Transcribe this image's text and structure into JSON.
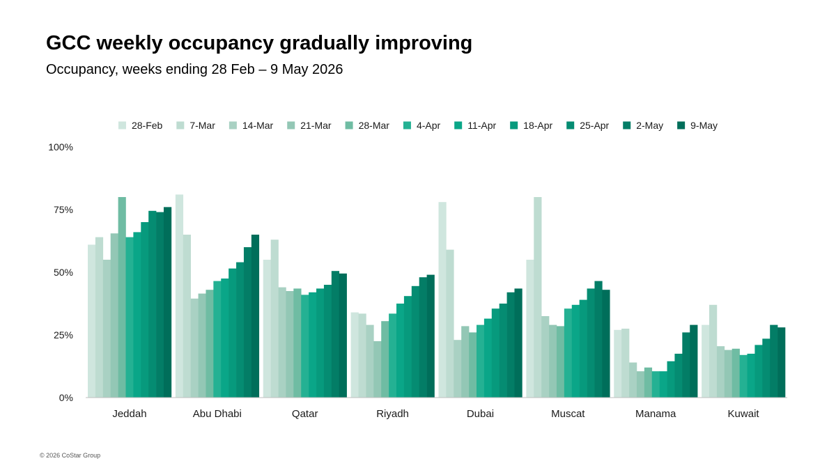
{
  "title": "GCC weekly occupancy gradually improving",
  "subtitle": "Occupancy, weeks ending 28 Feb – 9 May 2026",
  "footer": "© 2026 CoStar Group",
  "chart_data": {
    "type": "bar",
    "categories": [
      "Jeddah",
      "Abu Dhabi",
      "Qatar",
      "Riyadh",
      "Dubai",
      "Muscat",
      "Manama",
      "Kuwait"
    ],
    "ylim": [
      0,
      100
    ],
    "yticks": [
      "0%",
      "25%",
      "50%",
      "75%",
      "100%"
    ],
    "grid": false,
    "legend_position": "top",
    "series": [
      {
        "name": "28-Feb",
        "color": "#cfe6de",
        "values": [
          61,
          81,
          55,
          34,
          78,
          55,
          27,
          29
        ]
      },
      {
        "name": "7-Mar",
        "color": "#bedcd1",
        "values": [
          64,
          65,
          63,
          33.5,
          59,
          80,
          27.5,
          37
        ]
      },
      {
        "name": "14-Mar",
        "color": "#a9d1c3",
        "values": [
          55,
          39.5,
          44,
          29,
          23,
          32.5,
          14,
          20.5
        ]
      },
      {
        "name": "21-Mar",
        "color": "#93c7b5",
        "values": [
          65.5,
          41.5,
          42.5,
          22.5,
          28.5,
          29,
          10.5,
          19
        ]
      },
      {
        "name": "28-Mar",
        "color": "#6fbca3",
        "values": [
          80,
          43,
          43.5,
          30.5,
          26,
          28.5,
          12,
          19.5
        ]
      },
      {
        "name": "4-Apr",
        "color": "#24b193",
        "values": [
          64,
          46.5,
          41,
          33.5,
          29,
          35.5,
          10.5,
          17
        ]
      },
      {
        "name": "11-Apr",
        "color": "#0aa688",
        "values": [
          66,
          47.5,
          42,
          37.5,
          31.5,
          37,
          10.5,
          17.5
        ]
      },
      {
        "name": "18-Apr",
        "color": "#079a7d",
        "values": [
          70,
          51.5,
          43.5,
          40.5,
          35.5,
          39,
          14.5,
          21
        ]
      },
      {
        "name": "25-Apr",
        "color": "#058c72",
        "values": [
          74.5,
          54,
          45,
          44.5,
          37.5,
          43.5,
          17.5,
          23.5
        ]
      },
      {
        "name": "2-May",
        "color": "#037d66",
        "values": [
          74,
          60,
          50.5,
          48,
          42,
          46.5,
          26,
          29
        ]
      },
      {
        "name": "9-May",
        "color": "#006e5a",
        "values": [
          76,
          65,
          49.5,
          49,
          43.5,
          43,
          29,
          28
        ]
      }
    ]
  }
}
